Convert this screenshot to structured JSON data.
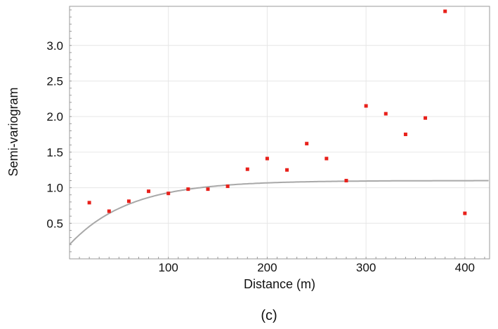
{
  "caption": "(c)",
  "chart_data": {
    "type": "scatter",
    "xlabel": "Distance (m)",
    "ylabel": "Semi-variogram",
    "xlim": [
      0,
      425
    ],
    "ylim": [
      0,
      3.55
    ],
    "x_ticks": [
      100,
      200,
      300,
      400
    ],
    "y_ticks": [
      0.5,
      1.0,
      1.5,
      2.0,
      2.5,
      3.0
    ],
    "x_tick_labels": [
      "100",
      "200",
      "300",
      "400"
    ],
    "y_tick_labels": [
      "0.5",
      "1.0",
      "1.5",
      "2.0",
      "2.5",
      "3.0"
    ],
    "grid": true,
    "legend": "none",
    "series": [
      {
        "type": "scatter",
        "color": "#e8201a",
        "x": [
          20,
          40,
          60,
          80,
          100,
          120,
          140,
          160,
          180,
          200,
          220,
          240,
          260,
          280,
          300,
          320,
          340,
          360,
          380,
          400
        ],
        "y": [
          0.79,
          0.67,
          0.81,
          0.95,
          0.92,
          0.98,
          0.98,
          1.02,
          1.26,
          1.41,
          1.25,
          1.62,
          1.41,
          1.1,
          2.15,
          2.04,
          1.75,
          1.98,
          3.48,
          0.64
        ]
      },
      {
        "type": "line",
        "color": "#a8a8a8",
        "model": "exponential",
        "nugget": 0.2,
        "sill": 1.1,
        "range": 60
      }
    ]
  }
}
